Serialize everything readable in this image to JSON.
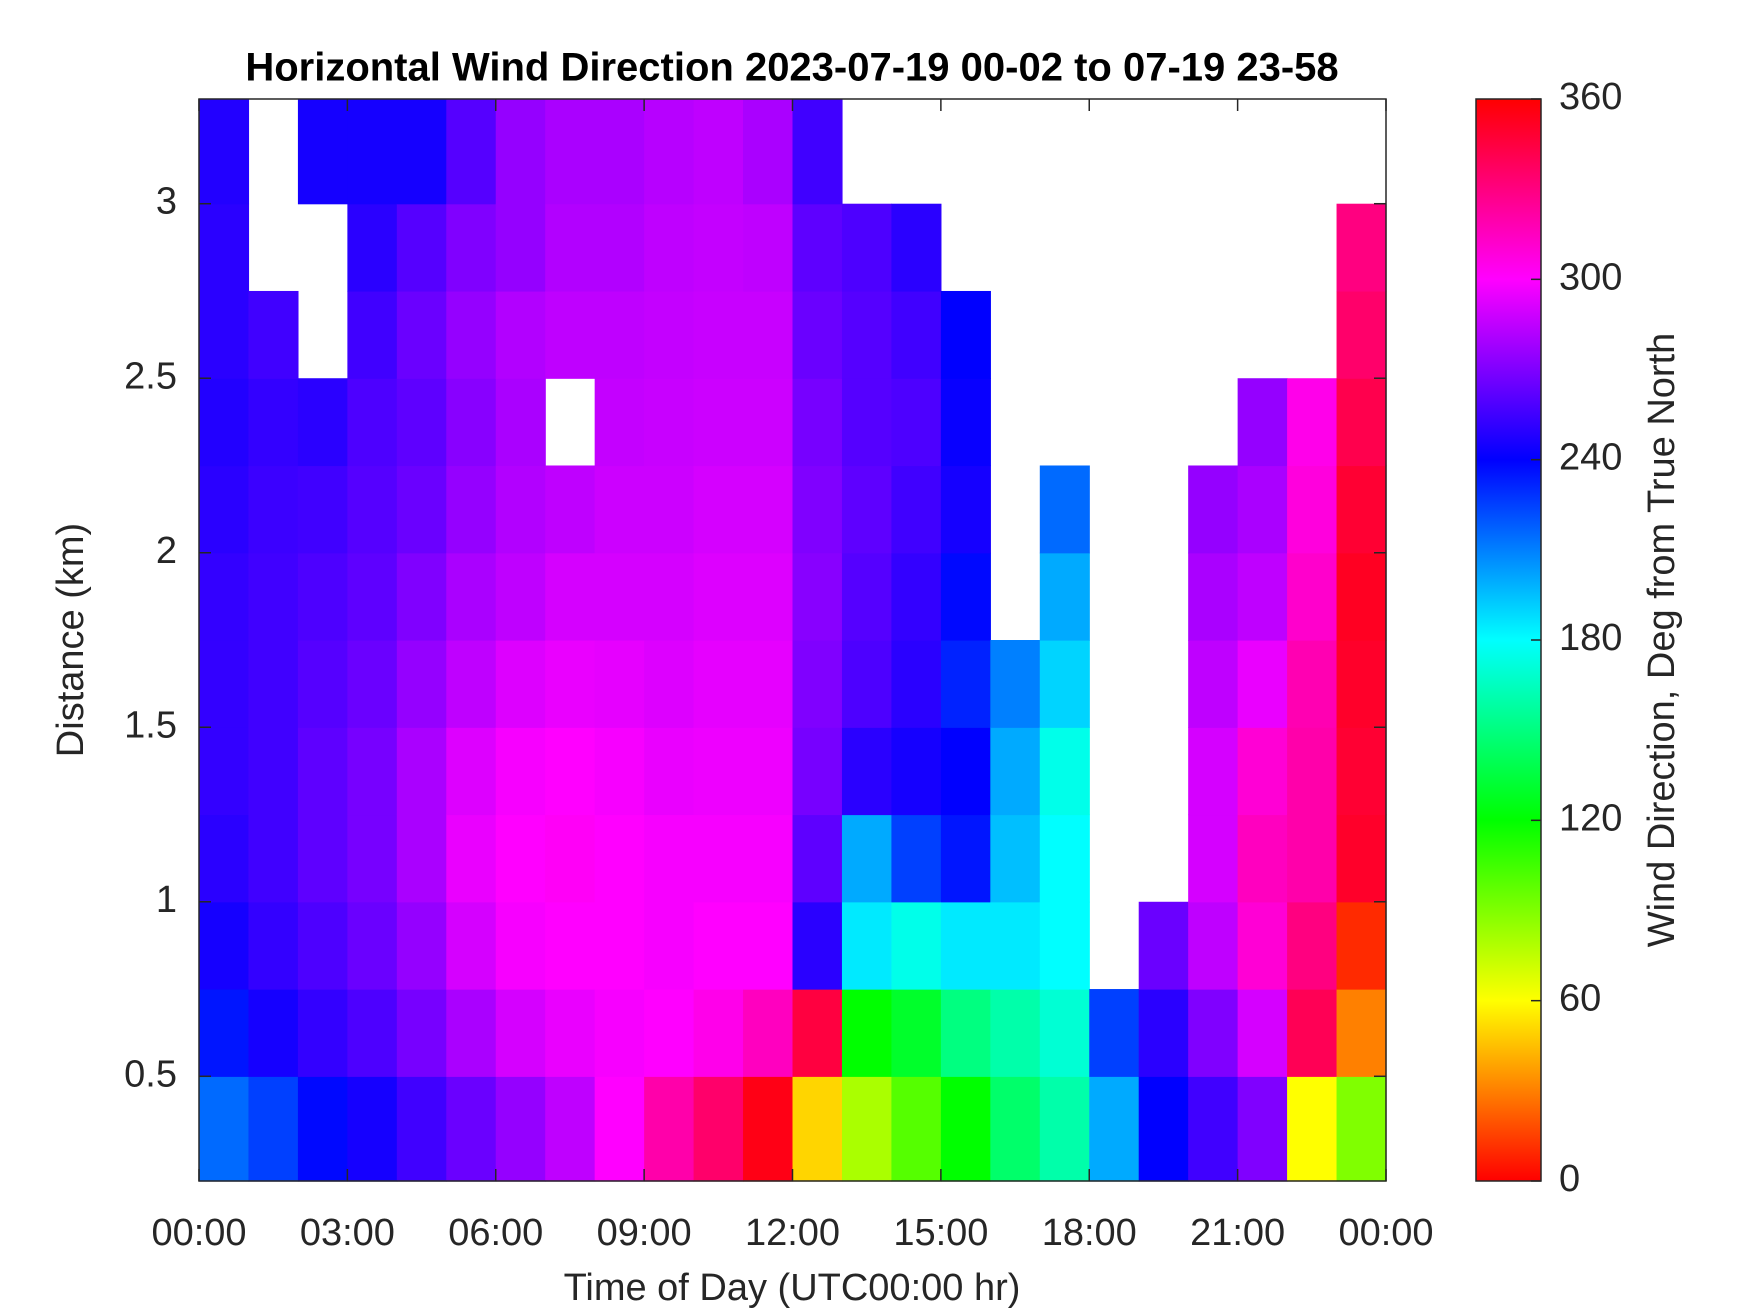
{
  "chart_data": {
    "type": "heatmap",
    "title": "Horizontal Wind Direction 2023-07-19 00-02 to 07-19 23-58",
    "x_label": "Time of Day (UTC00:00 hr)",
    "y_label": "Distance (km)",
    "colorbar_label": "Wind Direction, Deg from True North",
    "colormap": "hsv",
    "clim": [
      0,
      360
    ],
    "cticks": [
      0,
      60,
      120,
      180,
      240,
      300,
      360
    ],
    "xlim": [
      0,
      24
    ],
    "xticks": [
      {
        "value": 0,
        "label": "00:00"
      },
      {
        "value": 3,
        "label": "03:00"
      },
      {
        "value": 6,
        "label": "06:00"
      },
      {
        "value": 9,
        "label": "09:00"
      },
      {
        "value": 12,
        "label": "12:00"
      },
      {
        "value": 15,
        "label": "15:00"
      },
      {
        "value": 18,
        "label": "18:00"
      },
      {
        "value": 21,
        "label": "21:00"
      },
      {
        "value": 24,
        "label": "00:00"
      }
    ],
    "ylim": [
      0.2,
      3.3
    ],
    "yticks": [
      0.5,
      1,
      1.5,
      2,
      2.5,
      3
    ],
    "x_bins": [
      0,
      1,
      2,
      3,
      4,
      5,
      6,
      7,
      8,
      9,
      10,
      11,
      12,
      13,
      14,
      15,
      16,
      17,
      18,
      19,
      20,
      21,
      22,
      23,
      24
    ],
    "y_bins": [
      0.2,
      0.5,
      0.75,
      1,
      1.25,
      1.5,
      1.75,
      2,
      2.25,
      2.5,
      2.75,
      3,
      3.3
    ],
    "values": [
      [
        215,
        235,
        245,
        250,
        252,
        252,
        252,
        250,
        248,
        250,
        250,
        248
      ],
      [
        225,
        245,
        252,
        255,
        255,
        255,
        255,
        254,
        252,
        255,
        null,
        null
      ],
      [
        238,
        252,
        258,
        262,
        262,
        260,
        258,
        255,
        250,
        null,
        null,
        245
      ],
      [
        245,
        258,
        265,
        268,
        268,
        265,
        262,
        260,
        258,
        255,
        250,
        245
      ],
      [
        255,
        268,
        275,
        280,
        280,
        275,
        270,
        265,
        262,
        265,
        260,
        245
      ],
      [
        265,
        280,
        290,
        295,
        292,
        285,
        280,
        275,
        272,
        275,
        270,
        260
      ],
      [
        275,
        290,
        298,
        300,
        298,
        292,
        285,
        282,
        280,
        282,
        275,
        275
      ],
      [
        285,
        295,
        300,
        302,
        300,
        295,
        290,
        285,
        null,
        285,
        282,
        280
      ],
      [
        300,
        298,
        300,
        300,
        298,
        294,
        290,
        288,
        286,
        285,
        282,
        280
      ],
      [
        320,
        300,
        298,
        298,
        295,
        292,
        290,
        288,
        287,
        286,
        285,
        283
      ],
      [
        335,
        305,
        300,
        298,
        296,
        294,
        292,
        290,
        288,
        287,
        286,
        285
      ],
      [
        355,
        315,
        300,
        298,
        296,
        294,
        292,
        290,
        288,
        287,
        285,
        280
      ],
      [
        50,
        345,
        250,
        262,
        268,
        270,
        272,
        270,
        268,
        265,
        262,
        255
      ],
      [
        80,
        120,
        185,
        200,
        250,
        258,
        260,
        262,
        260,
        260,
        258,
        null
      ],
      [
        100,
        130,
        175,
        225,
        245,
        250,
        252,
        255,
        258,
        255,
        250,
        null
      ],
      [
        120,
        150,
        185,
        235,
        240,
        232,
        238,
        245,
        242,
        240,
        null,
        null
      ],
      [
        145,
        160,
        185,
        195,
        200,
        210,
        null,
        null,
        null,
        null,
        null,
        null
      ],
      [
        160,
        170,
        180,
        180,
        175,
        190,
        200,
        215,
        null,
        null,
        null,
        null
      ],
      [
        200,
        225,
        null,
        null,
        null,
        null,
        null,
        null,
        null,
        null,
        null,
        null
      ],
      [
        240,
        250,
        265,
        null,
        null,
        null,
        null,
        null,
        null,
        null,
        null,
        null
      ],
      [
        255,
        270,
        285,
        290,
        290,
        285,
        280,
        275,
        null,
        null,
        null,
        null
      ],
      [
        270,
        290,
        310,
        315,
        310,
        295,
        285,
        280,
        275,
        null,
        null,
        null
      ],
      [
        60,
        340,
        330,
        320,
        320,
        318,
        312,
        308,
        305,
        null,
        null,
        null
      ],
      [
        90,
        30,
        10,
        350,
        348,
        350,
        352,
        348,
        342,
        335,
        330,
        null
      ]
    ]
  }
}
